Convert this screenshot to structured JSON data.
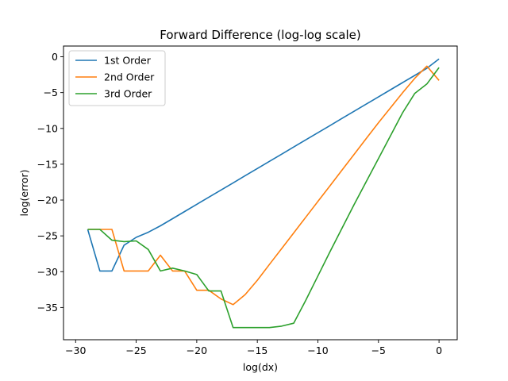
{
  "chart_data": {
    "type": "line",
    "title": "Forward Difference (log-log scale)",
    "xlabel": "log(dx)",
    "ylabel": "log(error)",
    "xlim": [
      -31,
      1.5
    ],
    "ylim": [
      -39.5,
      1.5
    ],
    "xticks": [
      -30,
      -25,
      -20,
      -15,
      -10,
      -5,
      0
    ],
    "yticks": [
      0,
      -5,
      -10,
      -15,
      -20,
      -25,
      -30,
      -35
    ],
    "grid": false,
    "legend": "top-left",
    "series": [
      {
        "name": "1st Order",
        "color": "#1f77b4",
        "points": [
          [
            -29,
            -24.1
          ],
          [
            -28,
            -29.9
          ],
          [
            -27,
            -29.9
          ],
          [
            -26,
            -26.3
          ],
          [
            -25,
            -25.2
          ],
          [
            -24,
            -24.5
          ],
          [
            -23,
            -23.6
          ],
          [
            -22,
            -22.6
          ],
          [
            -21,
            -21.6
          ],
          [
            -20,
            -20.6
          ],
          [
            -19,
            -19.6
          ],
          [
            -18,
            -18.6
          ],
          [
            -17,
            -17.6
          ],
          [
            -16,
            -16.6
          ],
          [
            -15,
            -15.6
          ],
          [
            -14,
            -14.6
          ],
          [
            -13,
            -13.6
          ],
          [
            -12,
            -12.6
          ],
          [
            -11,
            -11.6
          ],
          [
            -10,
            -10.6
          ],
          [
            -9,
            -9.6
          ],
          [
            -8,
            -8.6
          ],
          [
            -7,
            -7.6
          ],
          [
            -6,
            -6.6
          ],
          [
            -5,
            -5.6
          ],
          [
            -4,
            -4.6
          ],
          [
            -3,
            -3.6
          ],
          [
            -2,
            -2.6
          ],
          [
            -1,
            -1.6
          ],
          [
            0,
            -0.3
          ]
        ]
      },
      {
        "name": "2nd Order",
        "color": "#ff7f0e",
        "points": [
          [
            -29,
            -24.1
          ],
          [
            -28,
            -24.1
          ],
          [
            -27,
            -24.1
          ],
          [
            -26,
            -29.9
          ],
          [
            -25,
            -29.9
          ],
          [
            -24,
            -29.9
          ],
          [
            -23,
            -27.7
          ],
          [
            -22,
            -29.9
          ],
          [
            -21,
            -29.9
          ],
          [
            -20,
            -32.6
          ],
          [
            -19,
            -32.6
          ],
          [
            -18,
            -33.8
          ],
          [
            -17,
            -34.6
          ],
          [
            -16,
            -33.2
          ],
          [
            -15,
            -31.2
          ],
          [
            -14,
            -29.0
          ],
          [
            -13,
            -26.8
          ],
          [
            -12,
            -24.6
          ],
          [
            -11,
            -22.4
          ],
          [
            -10,
            -20.2
          ],
          [
            -9,
            -18.0
          ],
          [
            -8,
            -15.8
          ],
          [
            -7,
            -13.6
          ],
          [
            -6,
            -11.4
          ],
          [
            -5,
            -9.2
          ],
          [
            -4,
            -7.1
          ],
          [
            -3,
            -5.0
          ],
          [
            -2,
            -3.0
          ],
          [
            -1,
            -1.3
          ],
          [
            0,
            -3.3
          ]
        ]
      },
      {
        "name": "3rd Order",
        "color": "#2ca02c",
        "points": [
          [
            -29,
            -24.1
          ],
          [
            -28,
            -24.1
          ],
          [
            -27,
            -25.6
          ],
          [
            -26,
            -25.8
          ],
          [
            -25,
            -25.7
          ],
          [
            -24,
            -26.9
          ],
          [
            -23,
            -29.9
          ],
          [
            -22,
            -29.5
          ],
          [
            -21,
            -29.9
          ],
          [
            -20,
            -30.4
          ],
          [
            -19,
            -32.7
          ],
          [
            -18,
            -32.7
          ],
          [
            -17,
            -37.8
          ],
          [
            -16,
            -37.8
          ],
          [
            -15,
            -37.8
          ],
          [
            -14,
            -37.8
          ],
          [
            -13,
            -37.6
          ],
          [
            -12,
            -37.2
          ],
          [
            -11,
            -34.0
          ],
          [
            -10,
            -30.6
          ],
          [
            -9,
            -27.2
          ],
          [
            -8,
            -23.9
          ],
          [
            -7,
            -20.6
          ],
          [
            -6,
            -17.4
          ],
          [
            -5,
            -14.2
          ],
          [
            -4,
            -11.0
          ],
          [
            -3,
            -7.8
          ],
          [
            -2,
            -5.1
          ],
          [
            -1,
            -3.8
          ],
          [
            0,
            -1.5
          ]
        ]
      }
    ]
  }
}
